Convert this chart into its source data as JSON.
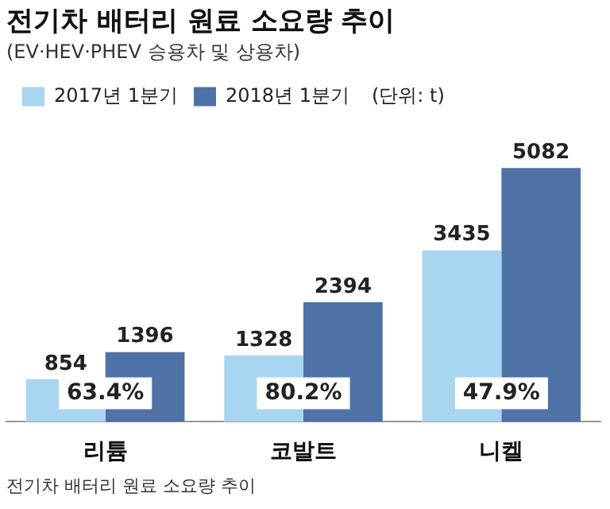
{
  "chart_data": {
    "type": "bar",
    "title": "전기차 배터리 원료 소요량 추이",
    "subtitle": "(EV·HEV·PHEV 승용차 및 상용차)",
    "categories": [
      "리튬",
      "코발트",
      "니켈"
    ],
    "series": [
      {
        "name": "2017년 1분기",
        "color": "#a8d5f0",
        "values": [
          854,
          1328,
          3435
        ]
      },
      {
        "name": "2018년 1분기",
        "color": "#4e72a6",
        "values": [
          1396,
          2394,
          5082
        ]
      }
    ],
    "data_labels": true,
    "legend": "top left",
    "grid": false,
    "annotations": [
      "(단위: t)",
      {
        "text": "63.4%",
        "x": "리튬"
      },
      {
        "text": "80.2%",
        "x": "코발트"
      },
      {
        "text": "47.9%",
        "x": "니켈"
      },
      "전기차 배터리 원료 소요량 추이"
    ]
  }
}
